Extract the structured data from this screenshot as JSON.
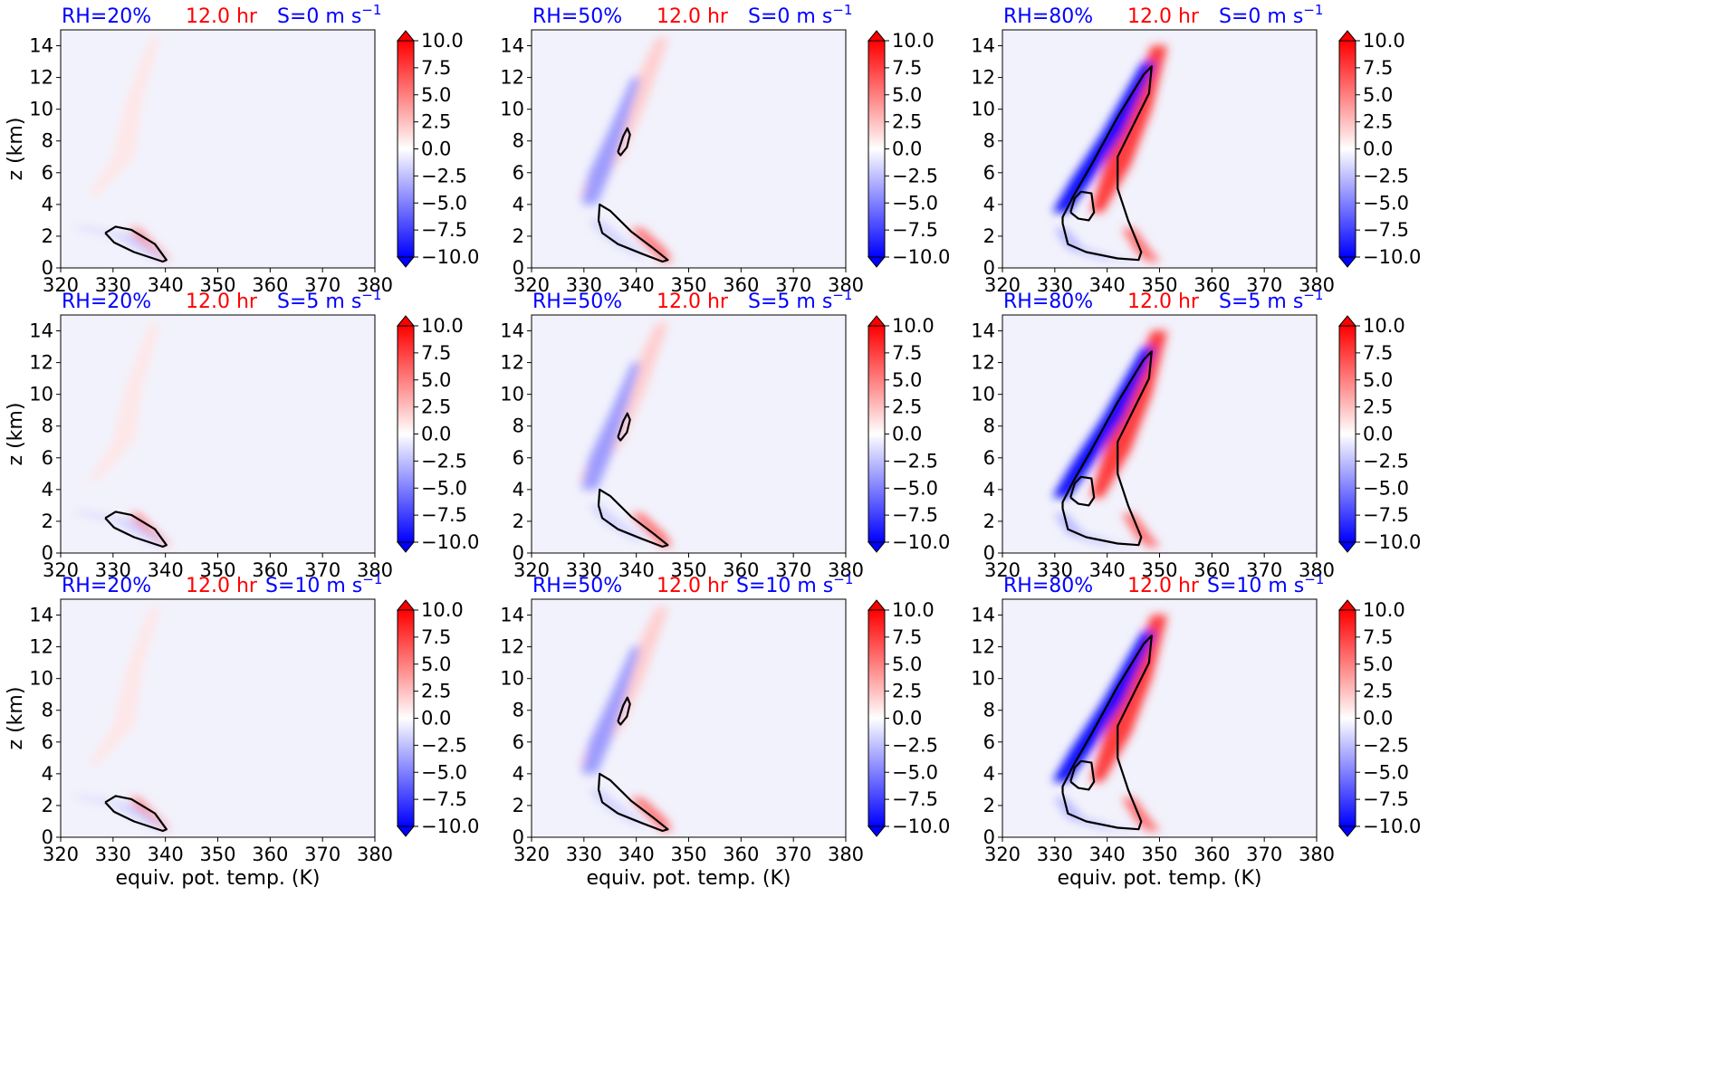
{
  "colors": {
    "rh_label": "#0000ff",
    "time_label": "#ff0000",
    "shear_label": "#0000ff",
    "background_field": "#f2f2fc",
    "contour": "#000000",
    "colormap_low": "#0000ff",
    "colormap_mid": "#ffffff",
    "colormap_high": "#ff0000"
  },
  "chart_data": {
    "type": "heatmap",
    "layout": "3x3 grid of filled-contour panels, each with its own vertical colorbar",
    "x_axis": {
      "label": "equiv. pot. temp. (K)",
      "lim": [
        320,
        380
      ],
      "ticks": [
        "320",
        "330",
        "340",
        "350",
        "360",
        "370",
        "380"
      ]
    },
    "y_axis": {
      "label": "z (km)",
      "lim": [
        0,
        15
      ],
      "ticks": [
        "0",
        "2",
        "4",
        "6",
        "8",
        "10",
        "12",
        "14"
      ]
    },
    "colorbar": {
      "lim": [
        -10,
        10
      ],
      "ticks": [
        "10.0",
        "7.5",
        "5.0",
        "2.5",
        "0.0",
        "−2.5",
        "−5.0",
        "−7.5",
        "−10.0"
      ],
      "extend": "both"
    },
    "rows": [
      {
        "shear": "S=0 m s",
        "shear_exp": "−1"
      },
      {
        "shear": "S=5 m s",
        "shear_exp": "−1"
      },
      {
        "shear": "S=10 m s",
        "shear_exp": "−1"
      }
    ],
    "columns": [
      {
        "rh": "RH=20%",
        "time": "12.0 hr"
      },
      {
        "rh": "RH=50%",
        "time": "12.0 hr"
      },
      {
        "rh": "RH=80%",
        "time": "12.0 hr"
      }
    ],
    "features_by_column": [
      {
        "negative": [
          {
            "x": [
              323,
              332,
              339
            ],
            "z": [
              2.6,
              2.0,
              0.6
            ],
            "w": [
              1.2,
              2.0,
              1.2
            ],
            "v": -2
          }
        ],
        "positive": [
          {
            "x": [
              326,
              332,
              334,
              338
            ],
            "z": [
              4.5,
              7.0,
              10.5,
              14.5
            ],
            "w": [
              0.8,
              2.0,
              1.5,
              0.9
            ],
            "v": 1
          },
          {
            "x": [
              334,
              337,
              340
            ],
            "z": [
              2.5,
              1.4,
              0.5
            ],
            "w": [
              1.0,
              1.2,
              1.0
            ],
            "v": 5
          }
        ],
        "contours": [
          [
            [
              328.5,
              2.2
            ],
            [
              330.5,
              2.6
            ],
            [
              333.5,
              2.4
            ],
            [
              338,
              1.5
            ],
            [
              340.2,
              0.5
            ],
            [
              339.5,
              0.4
            ],
            [
              334,
              1.0
            ],
            [
              330.2,
              1.6
            ],
            [
              328.5,
              2.2
            ]
          ]
        ]
      },
      {
        "negative": [
          {
            "x": [
              331,
              333,
              336,
              340
            ],
            "z": [
              4.0,
              6.0,
              8.5,
              12.0
            ],
            "w": [
              1.5,
              2.0,
              1.5,
              0.8
            ],
            "v": -4
          },
          {
            "x": [
              332,
              336,
              341
            ],
            "z": [
              3.0,
              1.8,
              0.8
            ],
            "w": [
              1.2,
              1.5,
              1.0
            ],
            "v": -2
          }
        ],
        "positive": [
          {
            "x": [
              330,
              335,
              340,
              345
            ],
            "z": [
              4.5,
              7.0,
              10.5,
              14.5
            ],
            "w": [
              1.0,
              2.5,
              2.0,
              1.2
            ],
            "v": 2
          },
          {
            "x": [
              340,
              344,
              346
            ],
            "z": [
              2.5,
              1.2,
              0.4
            ],
            "w": [
              1.2,
              1.5,
              1.0
            ],
            "v": 6
          }
        ],
        "contours": [
          [
            [
              336.5,
              7.3
            ],
            [
              337.5,
              8.3
            ],
            [
              338.3,
              8.8
            ],
            [
              338.8,
              8.4
            ],
            [
              338.2,
              7.6
            ],
            [
              337.0,
              7.1
            ],
            [
              336.5,
              7.3
            ]
          ],
          [
            [
              332.8,
              3.0
            ],
            [
              333,
              4.0
            ],
            [
              335,
              3.6
            ],
            [
              339,
              2.3
            ],
            [
              343,
              1.3
            ],
            [
              346,
              0.5
            ],
            [
              345,
              0.4
            ],
            [
              341,
              0.9
            ],
            [
              336.5,
              1.5
            ],
            [
              333.5,
              2.2
            ],
            [
              332.8,
              3.0
            ]
          ]
        ]
      },
      {
        "negative": [
          {
            "x": [
              331,
              335,
              341,
              348
            ],
            "z": [
              3.5,
              5.5,
              8.5,
              13.0
            ],
            "w": [
              1.5,
              2.0,
              2.0,
              1.2
            ],
            "v": -10
          },
          {
            "x": [
              331,
              334,
              340,
              345
            ],
            "z": [
              2.5,
              1.2,
              0.6,
              0.4
            ],
            "w": [
              1.2,
              1.5,
              1.5,
              1.2
            ],
            "v": -3
          }
        ],
        "positive": [
          {
            "x": [
              338,
              342,
              346,
              350
            ],
            "z": [
              3.5,
              6.5,
              10.0,
              14.0
            ],
            "w": [
              1.2,
              2.5,
              2.5,
              1.5
            ],
            "v": 8
          },
          {
            "x": [
              344,
              347,
              349
            ],
            "z": [
              2.5,
              1.0,
              0.4
            ],
            "w": [
              1.2,
              1.5,
              1.2
            ],
            "v": 6
          }
        ],
        "contours": [
          [
            [
              333,
              3.5
            ],
            [
              333.8,
              4.4
            ],
            [
              335,
              4.8
            ],
            [
              337,
              4.7
            ],
            [
              337.5,
              3.5
            ],
            [
              336.5,
              3.0
            ],
            [
              334.5,
              3.1
            ],
            [
              333,
              3.5
            ]
          ],
          [
            [
              331.5,
              2.8
            ],
            [
              332.5,
              1.5
            ],
            [
              336,
              1.0
            ],
            [
              342,
              0.6
            ],
            [
              346,
              0.5
            ],
            [
              346.5,
              1.0
            ],
            [
              344,
              3.0
            ],
            [
              342,
              5.0
            ],
            [
              342,
              7.0
            ],
            [
              348,
              11.0
            ],
            [
              348.5,
              12.7
            ],
            [
              347,
              12.2
            ],
            [
              342,
              9.5
            ],
            [
              337,
              6.5
            ],
            [
              333.5,
              4.5
            ],
            [
              331.5,
              3.2
            ],
            [
              331.5,
              2.8
            ]
          ]
        ]
      }
    ]
  }
}
